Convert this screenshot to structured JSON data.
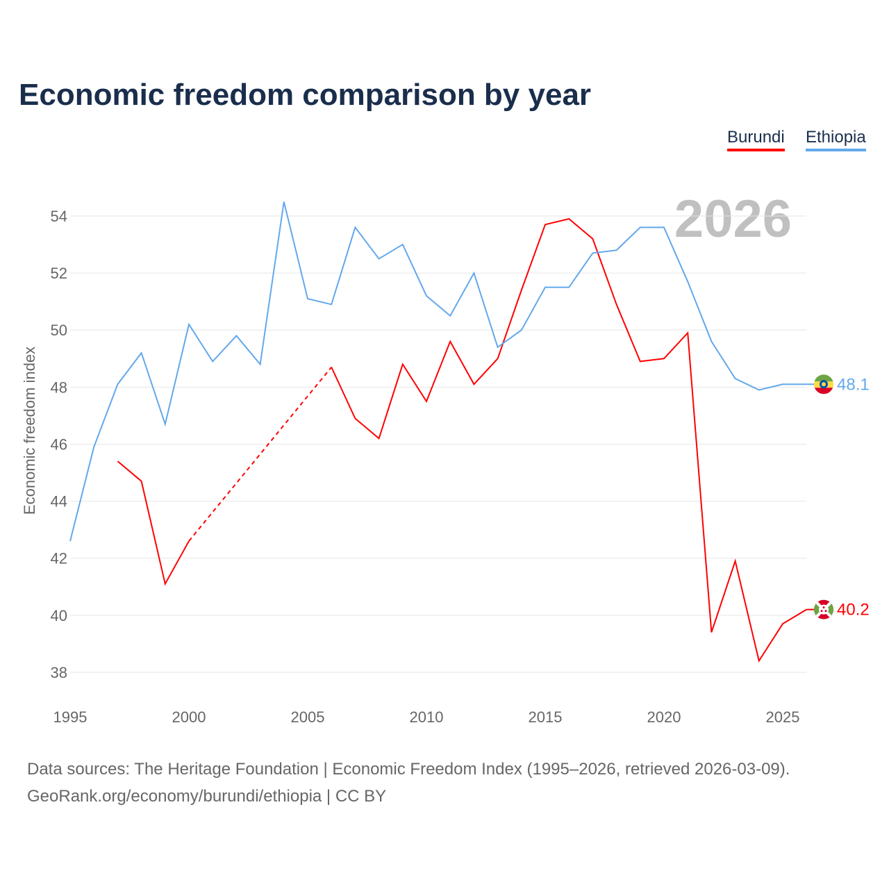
{
  "title": "Economic freedom comparison by year",
  "legend": [
    {
      "name": "Burundi",
      "color": "#ff0000"
    },
    {
      "name": "Ethiopia",
      "color": "#62a8ec"
    }
  ],
  "watermark_year": "2026",
  "footer": {
    "line1": "Data sources: The Heritage Foundation | Economic Freedom Index (1995–2026, retrieved 2026-03-09).",
    "line2": "GeoRank.org/economy/burundi/ethiopia | CC BY"
  },
  "chart_data": {
    "type": "line",
    "title": "Economic freedom comparison by year",
    "xlabel": "",
    "ylabel": "Economic freedom index",
    "xlim": [
      1995,
      2026
    ],
    "ylim": [
      37,
      55
    ],
    "x_ticks": [
      1995,
      2000,
      2005,
      2010,
      2015,
      2020,
      2025
    ],
    "y_ticks": [
      38,
      40,
      42,
      44,
      46,
      48,
      50,
      52,
      54
    ],
    "grid": true,
    "legend_position": "top-right",
    "x": [
      1995,
      1996,
      1997,
      1998,
      1999,
      2000,
      2001,
      2002,
      2003,
      2004,
      2005,
      2006,
      2007,
      2008,
      2009,
      2010,
      2011,
      2012,
      2013,
      2014,
      2015,
      2016,
      2017,
      2018,
      2019,
      2020,
      2021,
      2022,
      2023,
      2024,
      2025,
      2026
    ],
    "series": [
      {
        "name": "Burundi",
        "color": "#ff0000",
        "end_label": "40.2",
        "values": [
          null,
          null,
          45.4,
          44.7,
          41.1,
          42.6,
          null,
          null,
          null,
          null,
          null,
          48.7,
          46.9,
          46.2,
          48.8,
          47.5,
          49.6,
          48.1,
          49.0,
          51.4,
          53.7,
          53.9,
          53.2,
          50.9,
          48.9,
          49.0,
          49.9,
          39.4,
          41.9,
          38.4,
          39.7,
          40.2
        ]
      },
      {
        "name": "Ethiopia",
        "color": "#62a8ec",
        "end_label": "48.1",
        "values": [
          42.6,
          45.9,
          48.1,
          49.2,
          46.7,
          50.2,
          48.9,
          49.8,
          48.8,
          54.5,
          51.1,
          50.9,
          53.6,
          52.5,
          53.0,
          51.2,
          50.5,
          52.0,
          49.4,
          50.0,
          51.5,
          51.5,
          52.7,
          52.8,
          53.6,
          53.6,
          51.7,
          49.6,
          48.3,
          47.9,
          48.1,
          48.1
        ]
      }
    ]
  }
}
